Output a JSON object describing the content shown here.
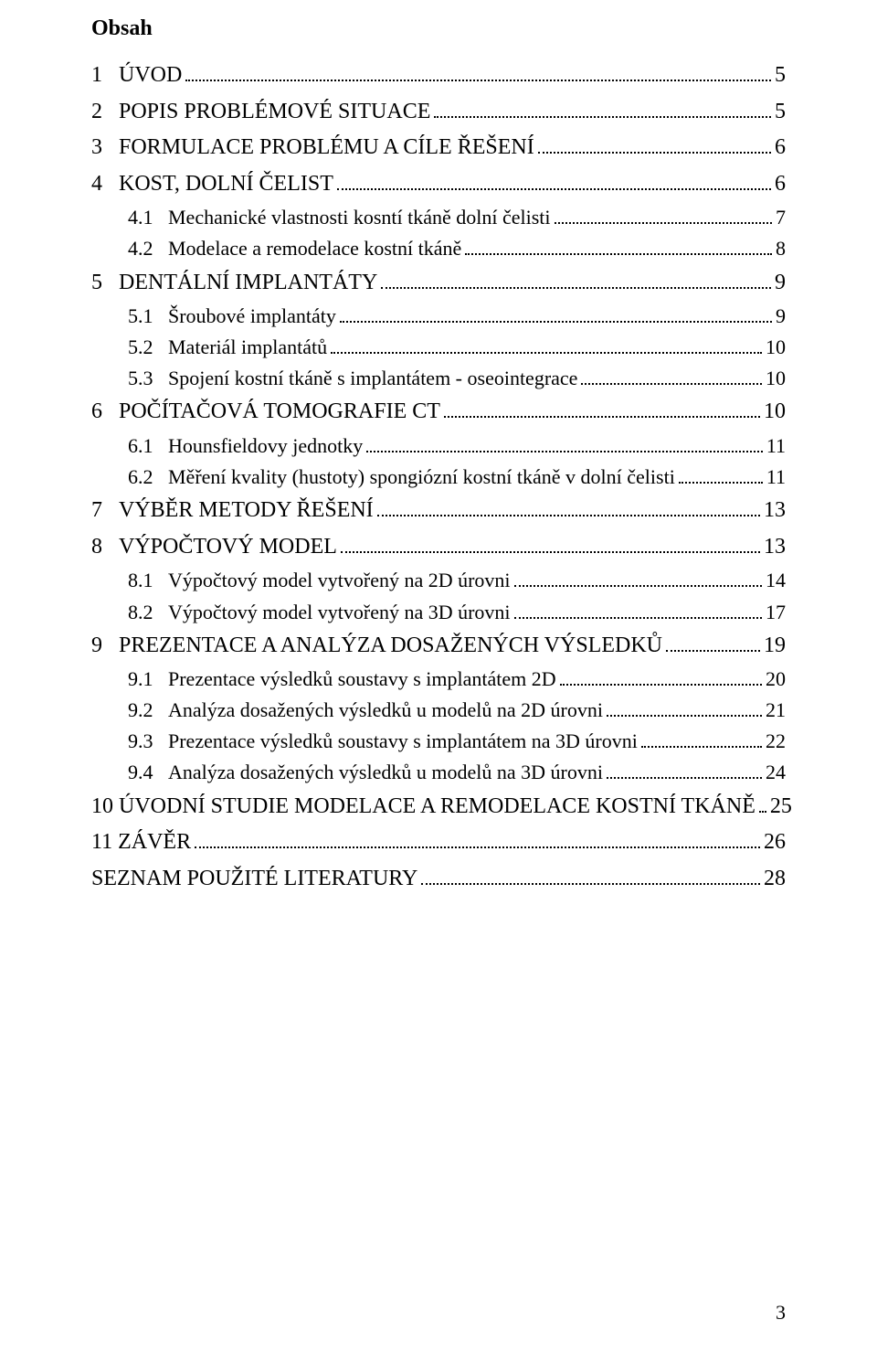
{
  "heading": "Obsah",
  "page_number": "3",
  "entries": [
    {
      "level": 1,
      "num": "1",
      "title": "ÚVOD",
      "page": "5"
    },
    {
      "level": 1,
      "num": "2",
      "title": "POPIS PROBLÉMOVÉ SITUACE",
      "page": "5"
    },
    {
      "level": 1,
      "num": "3",
      "title": "FORMULACE PROBLÉMU A CÍLE ŘEŠENÍ",
      "page": "6"
    },
    {
      "level": 1,
      "num": "4",
      "title": "KOST, DOLNÍ ČELIST",
      "page": "6"
    },
    {
      "level": 2,
      "num": "4.1",
      "title": "Mechanické vlastnosti kosntí tkáně dolní čelisti",
      "page": "7"
    },
    {
      "level": 2,
      "num": "4.2",
      "title": "Modelace a remodelace kostní tkáně",
      "page": "8"
    },
    {
      "level": 1,
      "num": "5",
      "title": "DENTÁLNÍ IMPLANTÁTY",
      "page": "9"
    },
    {
      "level": 2,
      "num": "5.1",
      "title": "Šroubové implantáty",
      "page": "9"
    },
    {
      "level": 2,
      "num": "5.2",
      "title": "Materiál implantátů",
      "page": "10"
    },
    {
      "level": 2,
      "num": "5.3",
      "title": "Spojení kostní tkáně s implantátem - oseointegrace",
      "page": "10"
    },
    {
      "level": 1,
      "num": "6",
      "title": "POČÍTAČOVÁ TOMOGRAFIE CT",
      "page": "10"
    },
    {
      "level": 2,
      "num": "6.1",
      "title": "Hounsfieldovy jednotky",
      "page": "11"
    },
    {
      "level": 2,
      "num": "6.2",
      "title": "Měření kvality (hustoty) spongiózní kostní tkáně v dolní čelisti",
      "page": "11"
    },
    {
      "level": 1,
      "num": "7",
      "title": "VÝBĚR METODY ŘEŠENÍ",
      "page": "13"
    },
    {
      "level": 1,
      "num": "8",
      "title": "VÝPOČTOVÝ MODEL",
      "page": "13"
    },
    {
      "level": 2,
      "num": "8.1",
      "title": "Výpočtový model vytvořený na 2D úrovni",
      "page": "14"
    },
    {
      "level": 2,
      "num": "8.2",
      "title": "Výpočtový model vytvořený na 3D úrovni",
      "page": "17"
    },
    {
      "level": 1,
      "num": "9",
      "title": "PREZENTACE A ANALÝZA DOSAŽENÝCH VÝSLEDKŮ",
      "page": "19"
    },
    {
      "level": 2,
      "num": "9.1",
      "title": "Prezentace výsledků soustavy s implantátem 2D",
      "page": "20"
    },
    {
      "level": 2,
      "num": "9.2",
      "title": "Analýza dosažených výsledků u modelů na 2D úrovni",
      "page": "21"
    },
    {
      "level": 2,
      "num": "9.3",
      "title": "Prezentace výsledků soustavy s implantátem na 3D úrovni",
      "page": "22"
    },
    {
      "level": 2,
      "num": "9.4",
      "title": "Analýza dosažených výsledků u modelů na 3D úrovni",
      "page": "24"
    },
    {
      "level": 1,
      "num": "10",
      "title": "ÚVODNÍ STUDIE MODELACE A REMODELACE KOSTNÍ TKÁNĚ",
      "page": "25"
    },
    {
      "level": 1,
      "num": "11",
      "title": "ZÁVĚR",
      "page": "26"
    },
    {
      "level": 1,
      "num": "",
      "title": "SEZNAM POUŽITÉ LITERATURY",
      "page": "28"
    }
  ]
}
